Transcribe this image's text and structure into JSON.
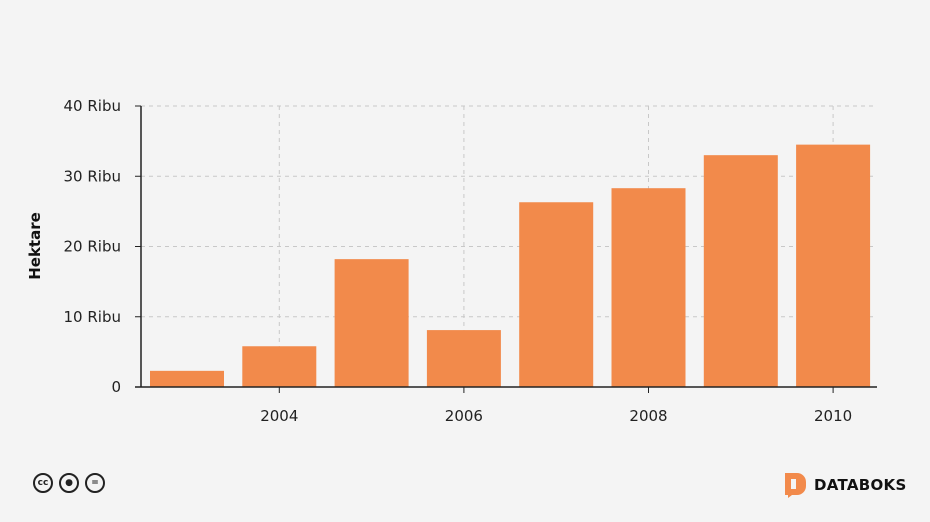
{
  "chart_data": {
    "type": "bar",
    "x": [
      2003,
      2004,
      2005,
      2006,
      2007,
      2008,
      2009,
      2010
    ],
    "values": [
      2300,
      5800,
      18200,
      8100,
      26300,
      28300,
      33000,
      34500
    ],
    "ylabel": "Hektare",
    "ylim": [
      0,
      40000
    ],
    "y_ticks": [
      0,
      10000,
      20000,
      30000,
      40000
    ],
    "y_tick_labels": [
      "0",
      "10 Ribu",
      "20 Ribu",
      "30 Ribu",
      "40 Ribu"
    ],
    "x_ticks": [
      2004,
      2006,
      2008,
      2010
    ],
    "x_tick_labels": [
      "2004",
      "2006",
      "2008",
      "2010"
    ],
    "bar_color": "#f28a4b",
    "grid": true
  },
  "footer": {
    "license_icons": [
      "cc-icon",
      "by-icon",
      "nd-icon"
    ],
    "license_glyphs": [
      "cc",
      "●",
      "="
    ],
    "brand": "DATABOKS",
    "brand_color": "#f28a4b"
  }
}
